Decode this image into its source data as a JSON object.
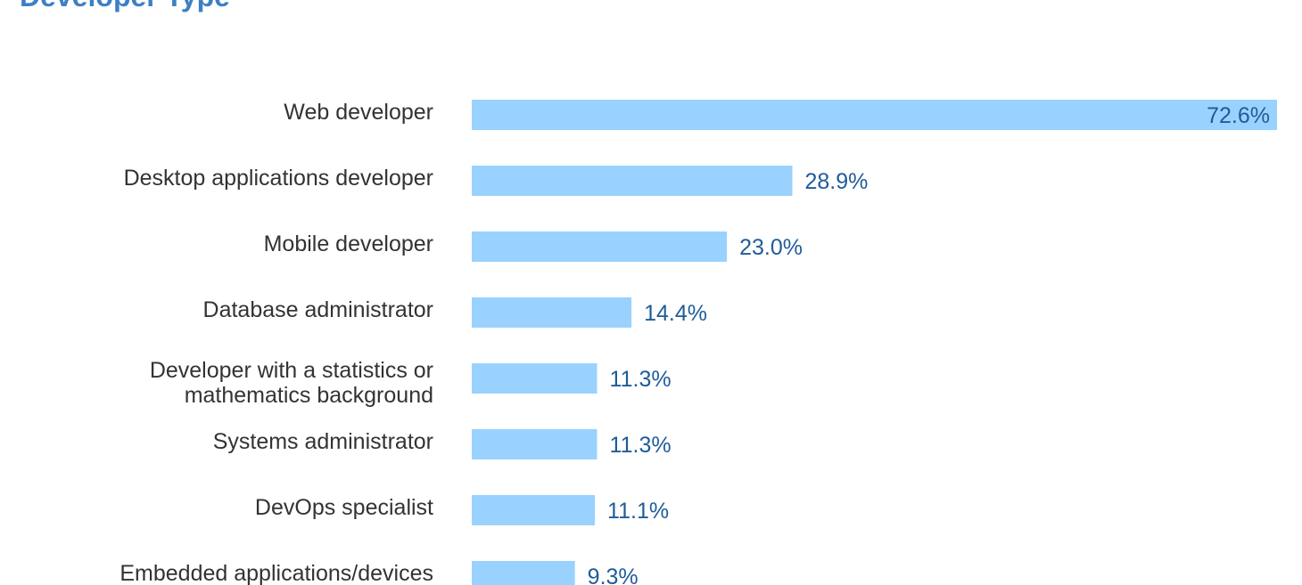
{
  "chart_data": {
    "type": "bar",
    "orientation": "horizontal",
    "title": "Developer Type",
    "categories": [
      "Web developer",
      "Desktop applications developer",
      "Mobile developer",
      "Database administrator",
      "Developer with a statistics or mathematics background",
      "Systems administrator",
      "DevOps specialist",
      "Embedded applications/devices"
    ],
    "category_lines": [
      [
        "Web developer"
      ],
      [
        "Desktop applications developer"
      ],
      [
        "Mobile developer"
      ],
      [
        "Database administrator"
      ],
      [
        "Developer with a statistics or",
        "mathematics background"
      ],
      [
        "Systems administrator"
      ],
      [
        "DevOps specialist"
      ],
      [
        "Embedded applications/devices"
      ]
    ],
    "values": [
      72.6,
      28.9,
      23.0,
      14.4,
      11.3,
      11.3,
      11.1,
      9.3
    ],
    "value_labels": [
      "72.6%",
      "28.9%",
      "23.0%",
      "14.4%",
      "11.3%",
      "11.3%",
      "11.1%",
      "9.3%"
    ],
    "xlim": [
      0,
      72.6
    ],
    "grid": false,
    "bar_color": "#99d2ff",
    "value_label_color": "#1f5c99",
    "label_color": "#333333",
    "title_color": "#3d7fc4"
  }
}
